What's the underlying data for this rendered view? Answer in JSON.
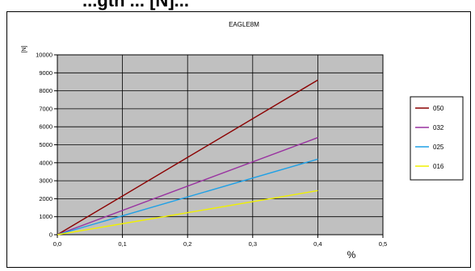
{
  "heading": "...gth ... [N]...",
  "chart_data": {
    "type": "line",
    "title": "EAGLE8M",
    "xlabel": "%",
    "ylabel": "[N]",
    "xlim": [
      0,
      0.5
    ],
    "ylim": [
      0,
      10000
    ],
    "x_ticks": [
      "0,0",
      "0,1",
      "0,2",
      "0,3",
      "0,4",
      "0,5"
    ],
    "y_ticks": [
      "0",
      "1000",
      "2000",
      "3000",
      "4000",
      "5000",
      "6000",
      "7000",
      "8000",
      "9000",
      "10000"
    ],
    "grid": true,
    "plot_background": "#c0c0c0",
    "legend_position": "right",
    "series": [
      {
        "name": "050",
        "color": "#8b0000",
        "x": [
          0,
          0.4
        ],
        "y": [
          0,
          8600
        ]
      },
      {
        "name": "032",
        "color": "#9932a0",
        "x": [
          0,
          0.4
        ],
        "y": [
          0,
          5400
        ]
      },
      {
        "name": "025",
        "color": "#1ea0e6",
        "x": [
          0,
          0.4
        ],
        "y": [
          0,
          4200
        ]
      },
      {
        "name": "016",
        "color": "#f0f000",
        "x": [
          0,
          0.4
        ],
        "y": [
          0,
          2450
        ]
      }
    ]
  }
}
